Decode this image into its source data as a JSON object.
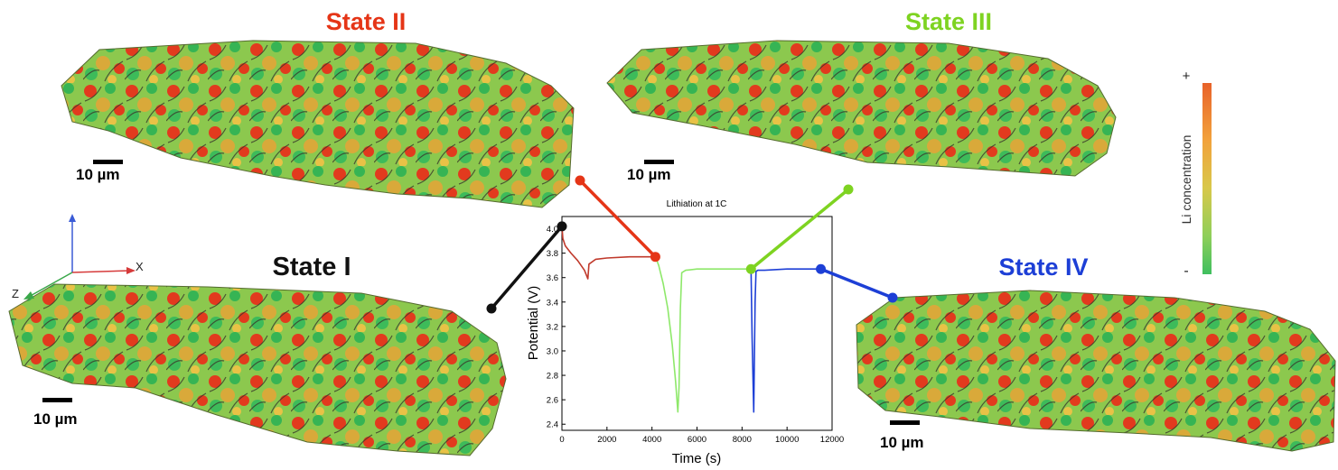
{
  "panels": [
    {
      "title": "State I",
      "title_color": "#111111",
      "scale": "10 µm"
    },
    {
      "title": "State II",
      "title_color": "#e53517",
      "scale": "10 µm"
    },
    {
      "title": "State III",
      "title_color": "#7ed321",
      "scale": "10 µm"
    },
    {
      "title": "State IV",
      "title_color": "#1d3fd6",
      "scale": "10 µm"
    }
  ],
  "axes_triad": {
    "x": "X",
    "z": "Z"
  },
  "colorbar": {
    "label": "Li concentration",
    "top": "+",
    "bottom": "-",
    "colors": [
      "#e8622a",
      "#f2a23c",
      "#d8c84a",
      "#8fcf5a",
      "#3fbf5f"
    ]
  },
  "colors": {
    "state1": "#111111",
    "state2": "#e53517",
    "state3": "#7ed321",
    "state4": "#1d3fd6"
  },
  "chart_data": {
    "type": "line",
    "title": "Lithiation at 1C",
    "xlabel": "Time (s)",
    "ylabel": "Potential (V)",
    "xlim": [
      0,
      12000
    ],
    "ylim": [
      2.35,
      4.1
    ],
    "xticks": [
      "0",
      "2000",
      "4000",
      "6000",
      "8000",
      "10000",
      "12000"
    ],
    "yticks": [
      "2.4",
      "2.6",
      "2.8",
      "3.0",
      "3.2",
      "3.4",
      "3.6",
      "3.8",
      "4.0"
    ],
    "series": [
      {
        "color": "#c0392b",
        "x": [
          0,
          40,
          150,
          400,
          700,
          1000,
          1150,
          1200,
          1500,
          2000,
          3000,
          4000,
          4150
        ],
        "y": [
          4.02,
          3.92,
          3.86,
          3.8,
          3.74,
          3.66,
          3.59,
          3.71,
          3.75,
          3.76,
          3.77,
          3.77,
          3.77
        ]
      },
      {
        "color": "#8ee86a",
        "x": [
          4150,
          4300,
          4500,
          4700,
          4900,
          5050,
          5150,
          5200,
          5260,
          5320,
          5500,
          6000,
          7000,
          8000,
          8400
        ],
        "y": [
          3.77,
          3.7,
          3.55,
          3.35,
          3.05,
          2.75,
          2.5,
          2.7,
          3.35,
          3.64,
          3.66,
          3.67,
          3.67,
          3.67,
          3.67
        ]
      },
      {
        "color": "#1d3fd6",
        "x": [
          8400,
          8450,
          8520,
          8580,
          8620,
          8700,
          9000,
          10000,
          11000,
          11500
        ],
        "y": [
          3.67,
          3.1,
          2.5,
          3.4,
          3.65,
          3.66,
          3.66,
          3.67,
          3.67,
          3.67
        ]
      }
    ],
    "markers": [
      {
        "state": "State I",
        "x": 0,
        "y": 4.02,
        "color": "#111111"
      },
      {
        "state": "State II",
        "x": 4150,
        "y": 3.77,
        "color": "#e53517"
      },
      {
        "state": "State III",
        "x": 8400,
        "y": 3.67,
        "color": "#7ed321"
      },
      {
        "state": "State IV",
        "x": 11500,
        "y": 3.67,
        "color": "#1d3fd6"
      }
    ]
  }
}
